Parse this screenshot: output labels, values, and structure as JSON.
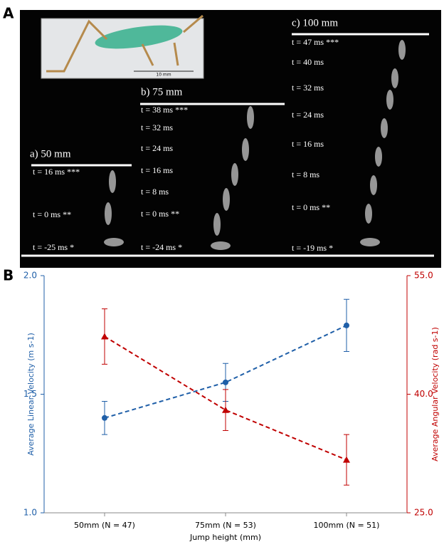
{
  "panel_a": {
    "label": "A",
    "scale_bar": "10 mm",
    "columns": [
      {
        "title": "a) 50 mm",
        "times": [
          "t =  16 ms ***",
          "t =  0 ms **",
          "t = -25 ms *"
        ]
      },
      {
        "title": "b) 75 mm",
        "times": [
          "t =  38 ms ***",
          "t =  32 ms",
          "t =  24 ms",
          "t =  16 ms",
          "t =  8 ms",
          "t =  0 ms **",
          "t = -24 ms *"
        ]
      },
      {
        "title": "c) 100 mm",
        "times": [
          "t =  47 ms ***",
          "t =  40 ms",
          "t =  32 ms",
          "t =  24 ms",
          "t =  16 ms",
          "t =  8 ms",
          "t =  0 ms **",
          "t = -19 ms *"
        ]
      }
    ]
  },
  "panel_b_label": "B",
  "chart_data": {
    "type": "line",
    "x_label": "Jump height (mm)",
    "y_label": "Average Linear Velocity (m s-1)",
    "y2_label": "Average Angular Velocity (rad s-1)",
    "categories": [
      "50mm (N = 47)",
      "75mm (N = 53)",
      "100mm (N = 51)"
    ],
    "ylim": [
      1.0,
      2.0
    ],
    "yticks": [
      {
        "value": 1.0,
        "label": "1.0"
      },
      {
        "value": 1.5,
        "label": "1.5"
      },
      {
        "value": 2.0,
        "label": "2.0"
      }
    ],
    "y2lim": [
      25.0,
      55.0
    ],
    "y2ticks": [
      {
        "value": 25.0,
        "label": "25.0"
      },
      {
        "value": 40.0,
        "label": "40.0"
      },
      {
        "value": 55.0,
        "label": "55.0"
      }
    ],
    "series": [
      {
        "color": "#1f5fa8",
        "marker": "circle",
        "values": [
          1.4,
          1.55,
          1.79
        ],
        "errors": [
          0.07,
          0.08,
          0.11
        ]
      },
      {
        "color": "#c00000",
        "marker": "triangle",
        "axis": "y2",
        "values": [
          47.3,
          38.0,
          31.7
        ],
        "errors": [
          3.5,
          2.6,
          3.2
        ]
      }
    ]
  }
}
